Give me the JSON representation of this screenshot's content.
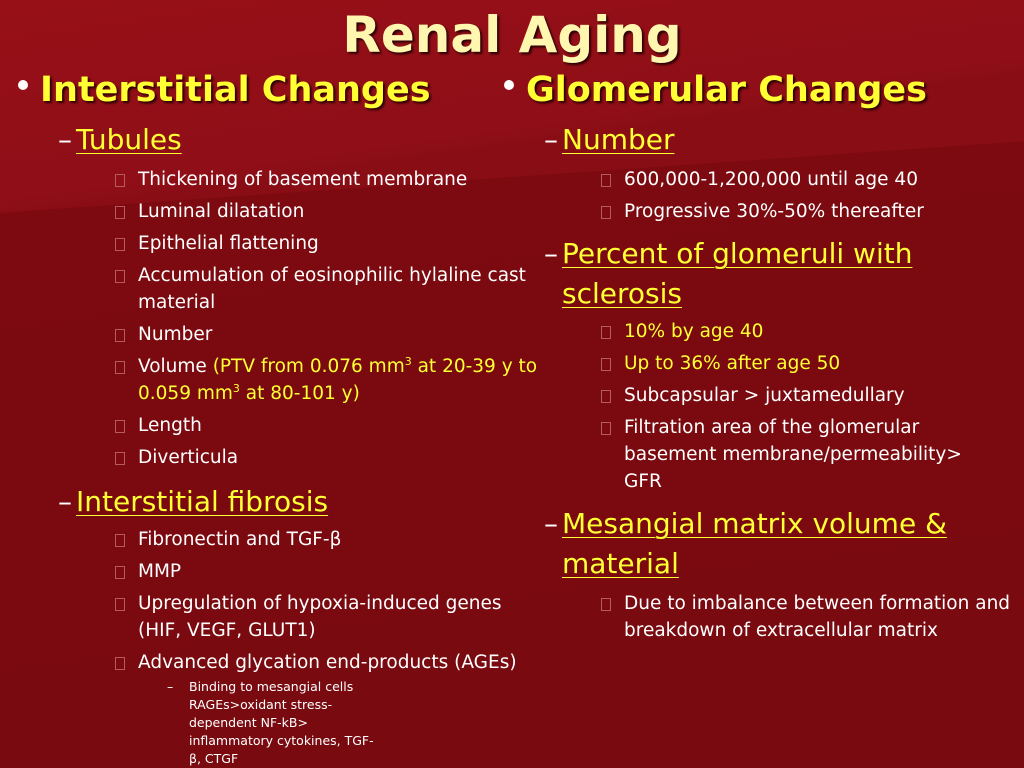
{
  "slide": {
    "title": "Renal Aging",
    "left": {
      "heading": "Interstitial Changes",
      "tubules": {
        "label": "Tubules",
        "items": [
          "Thickening of basement membrane",
          "Luminal dilatation",
          "Epithelial flattening",
          "Accumulation of eosinophilic hylaline cast material",
          "Number"
        ],
        "volume": {
          "prefix": "Volume ",
          "detail_a": "(PTV from 0.076 mm",
          "sup_a": "3",
          "detail_b": " at 20-39 y to 0.059 mm",
          "sup_b": "3",
          "detail_c": " at 80-101 y)"
        },
        "items_after": [
          "Length",
          "Diverticula"
        ]
      },
      "fibrosis": {
        "label": "Interstitial fibrosis",
        "items": [
          "Fibronectin and TGF-β",
          "MMP",
          "Upregulation of hypoxia-induced genes (HIF, VEGF, GLUT1)",
          "Advanced glycation end-products (AGEs)"
        ],
        "sub": "Binding to mesangial cells RAGEs>oxidant stress-dependent NF-kB> inflammatory cytokines, TGF- β, CTGF"
      }
    },
    "right": {
      "heading": "Glomerular Changes",
      "number": {
        "label": "Number",
        "items": [
          "600,000-1,200,000 until age 40",
          "Progressive 30%-50% thereafter"
        ]
      },
      "sclerosis": {
        "label": "Percent of glomeruli with sclerosis",
        "items_yellow": [
          "10% by age 40",
          "Up to 36% after age 50"
        ],
        "items": [
          "Subcapsular > juxtamedullary",
          "Filtration area of the glomerular basement membrane/permeability> GFR"
        ]
      },
      "mesangial": {
        "label": "Mesangial matrix volume & material",
        "items": [
          "Due to imbalance between formation and breakdown of extracellular matrix"
        ]
      }
    }
  }
}
